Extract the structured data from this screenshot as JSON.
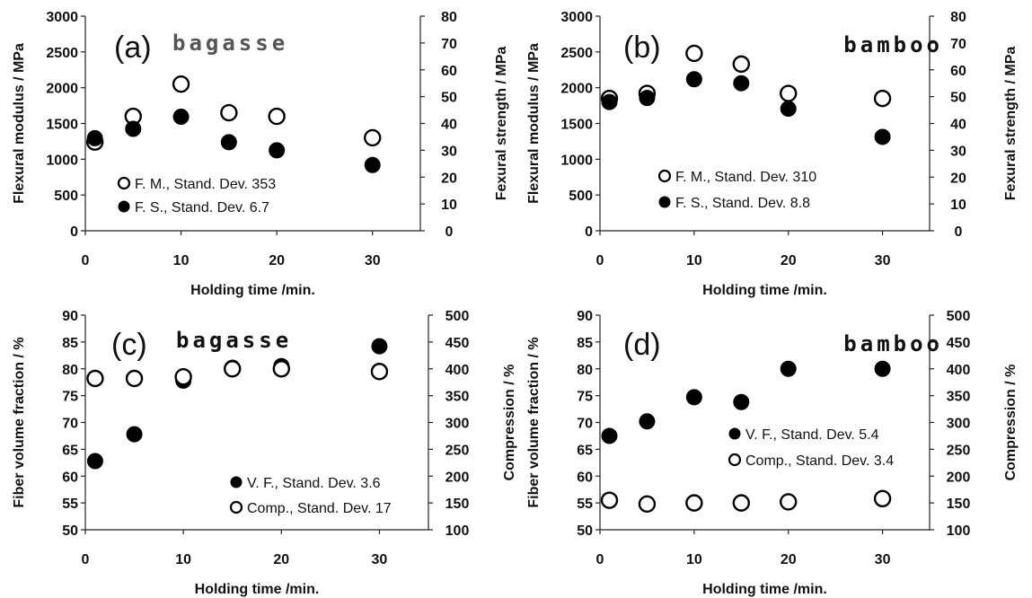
{
  "chart_data": [
    {
      "type": "scatter",
      "panel_label": "(a)",
      "material_label": "bagasse",
      "material_color": "#555555",
      "xlabel": "Holding time /min.",
      "ylabel_left": "Flexural modulus / MPa",
      "ylabel_right": "Fexural strength / MPa",
      "xlim": [
        0,
        35
      ],
      "xticks": [
        0,
        10,
        20,
        30
      ],
      "ylim_left": [
        0,
        3000
      ],
      "yticks_left": [
        0,
        500,
        1000,
        1500,
        2000,
        2500,
        3000
      ],
      "ylim_right": [
        0,
        80
      ],
      "yticks_right": [
        0,
        10,
        20,
        30,
        40,
        50,
        60,
        70,
        80
      ],
      "legend_placement": "bottom-left",
      "series": [
        {
          "name": "F. M., Stand. Dev. 353",
          "marker": "open-circle",
          "axis": "left",
          "x": [
            1,
            5,
            10,
            15,
            20,
            30
          ],
          "y": [
            1240,
            1600,
            2050,
            1650,
            1600,
            1300
          ]
        },
        {
          "name": "F. S., Stand. Dev. 6.7",
          "marker": "filled-circle",
          "axis": "right",
          "x": [
            1,
            5,
            10,
            15,
            20,
            30
          ],
          "y": [
            34.5,
            38,
            42.5,
            33,
            30,
            24.5
          ]
        }
      ]
    },
    {
      "type": "scatter",
      "panel_label": "(b)",
      "material_label": "bamboo",
      "material_color": "#111111",
      "xlabel": "Holding time /min.",
      "ylabel_left": "Flexural modulus / MPa",
      "ylabel_right": "Fexural strength / MPa",
      "xlim": [
        0,
        35
      ],
      "xticks": [
        0,
        10,
        20,
        30
      ],
      "ylim_left": [
        0,
        3000
      ],
      "yticks_left": [
        0,
        500,
        1000,
        1500,
        2000,
        2500,
        3000
      ],
      "ylim_right": [
        0,
        80
      ],
      "yticks_right": [
        0,
        10,
        20,
        30,
        40,
        50,
        60,
        70,
        80
      ],
      "legend_placement": "bottom-left",
      "series": [
        {
          "name": "F. M., Stand. Dev. 310",
          "marker": "open-circle",
          "axis": "left",
          "x": [
            1,
            5,
            10,
            15,
            20,
            30
          ],
          "y": [
            1850,
            1920,
            2480,
            2330,
            1920,
            1850
          ]
        },
        {
          "name": "F. S., Stand. Dev. 8.8",
          "marker": "filled-circle",
          "axis": "right",
          "x": [
            1,
            5,
            10,
            15,
            20,
            30
          ],
          "y": [
            48,
            49.5,
            56.5,
            55,
            45.5,
            35
          ]
        }
      ]
    },
    {
      "type": "scatter",
      "panel_label": "(c)",
      "material_label": "bagasse",
      "material_color": "#111111",
      "xlabel": "Holding time /min.",
      "ylabel_left": "Fiber volume fraction / %",
      "ylabel_right": "Compression / %",
      "xlim": [
        0,
        35
      ],
      "xticks": [
        0,
        10,
        20,
        30
      ],
      "ylim_left": [
        50,
        90
      ],
      "yticks_left": [
        50,
        55,
        60,
        65,
        70,
        75,
        80,
        85,
        90
      ],
      "ylim_right": [
        100,
        500
      ],
      "yticks_right": [
        100,
        150,
        200,
        250,
        300,
        350,
        400,
        450,
        500
      ],
      "legend_placement": "bottom-right",
      "series": [
        {
          "name": "V. F., Stand. Dev. 3.6",
          "marker": "filled-circle",
          "axis": "left",
          "x": [
            1,
            5,
            10,
            15,
            20,
            30
          ],
          "y": [
            62.8,
            67.8,
            77.8,
            80.2,
            80.5,
            84.2
          ]
        },
        {
          "name": "Comp., Stand. Dev. 17",
          "marker": "open-circle",
          "axis": "right",
          "x": [
            1,
            5,
            10,
            15,
            20,
            30
          ],
          "y": [
            382,
            382,
            385,
            400,
            400,
            395
          ]
        }
      ]
    },
    {
      "type": "scatter",
      "panel_label": "(d)",
      "material_label": "bamboo",
      "material_color": "#111111",
      "xlabel": "Holding time /min.",
      "ylabel_left": "Fiber volume fraction / %",
      "ylabel_right": "Compression / %",
      "xlim": [
        0,
        35
      ],
      "xticks": [
        0,
        10,
        20,
        30
      ],
      "ylim_left": [
        50,
        90
      ],
      "yticks_left": [
        50,
        55,
        60,
        65,
        70,
        75,
        80,
        85,
        90
      ],
      "ylim_right": [
        100,
        500
      ],
      "yticks_right": [
        100,
        150,
        200,
        250,
        300,
        350,
        400,
        450,
        500
      ],
      "legend_placement": "center-right",
      "series": [
        {
          "name": "V. F., Stand. Dev. 5.4",
          "marker": "filled-circle",
          "axis": "left",
          "x": [
            1,
            5,
            10,
            15,
            20,
            30
          ],
          "y": [
            67.5,
            70.2,
            74.7,
            73.8,
            80,
            80
          ]
        },
        {
          "name": "Comp., Stand. Dev. 3.4",
          "marker": "open-circle",
          "axis": "right",
          "x": [
            1,
            5,
            10,
            15,
            20,
            30
          ],
          "y": [
            155,
            148,
            150,
            150,
            152,
            158
          ]
        }
      ]
    }
  ]
}
